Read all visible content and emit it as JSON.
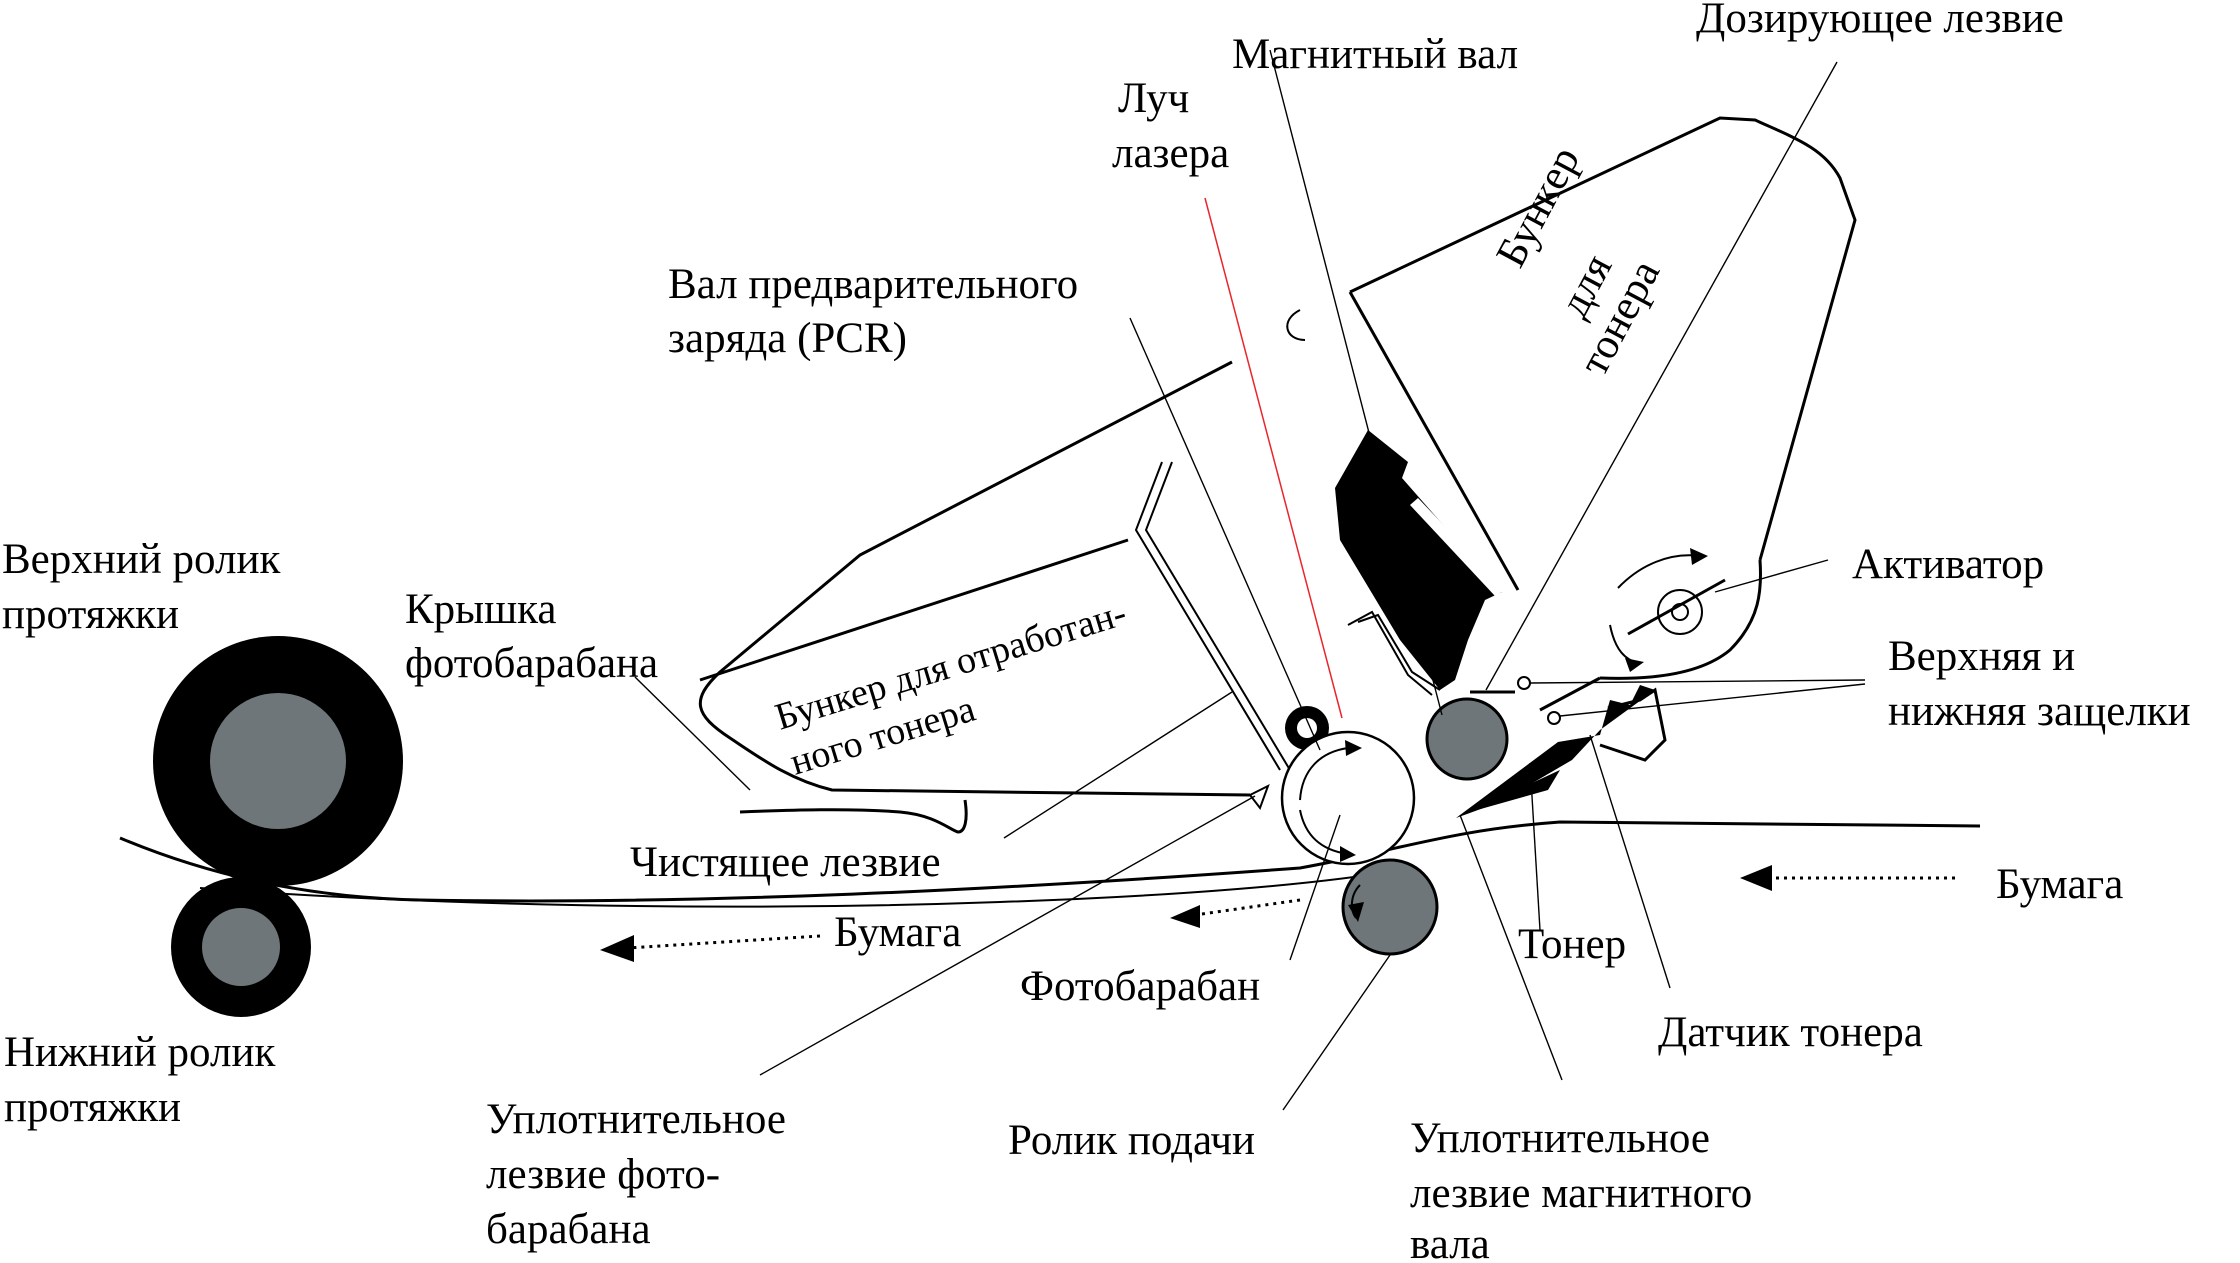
{
  "labels": {
    "upper_roller": [
      "Верхний ролик",
      "протяжки"
    ],
    "lower_roller": [
      "Нижний ролик",
      "протяжки"
    ],
    "drum_cover": [
      "Крышка",
      "фотобарабана"
    ],
    "pcr": [
      "Вал предварительного",
      "заряда (PCR)"
    ],
    "laser": [
      "Луч",
      "лазера"
    ],
    "magnetic_roller": "Магнитный вал",
    "metering_blade": "Дозирующее лезвие",
    "toner_hopper": [
      "Бункер",
      "для",
      "тонера"
    ],
    "waste_hopper": [
      "Бункер для отработан-",
      "ного тонера"
    ],
    "agitator": "Активатор",
    "latches": [
      "Верхняя и",
      "нижняя защелки"
    ],
    "cleaning_blade": "Чистящее лезвие",
    "paper_left": "Бумага",
    "paper_right": "Бумага",
    "drum": "Фотобарабан",
    "toner": "Тонер",
    "toner_sensor": "Датчик тонера",
    "drum_seal_blade": [
      "Уплотнительное",
      "лезвие фото-",
      "барабана"
    ],
    "feed_roller": "Ролик подачи",
    "mag_seal_blade": [
      "Уплотнительное",
      "лезвие магнитного",
      "вала"
    ]
  },
  "colors": {
    "ink": "#000000",
    "roller_core": "#6e7679",
    "laser_beam": "#e8262b",
    "background": "#ffffff"
  }
}
